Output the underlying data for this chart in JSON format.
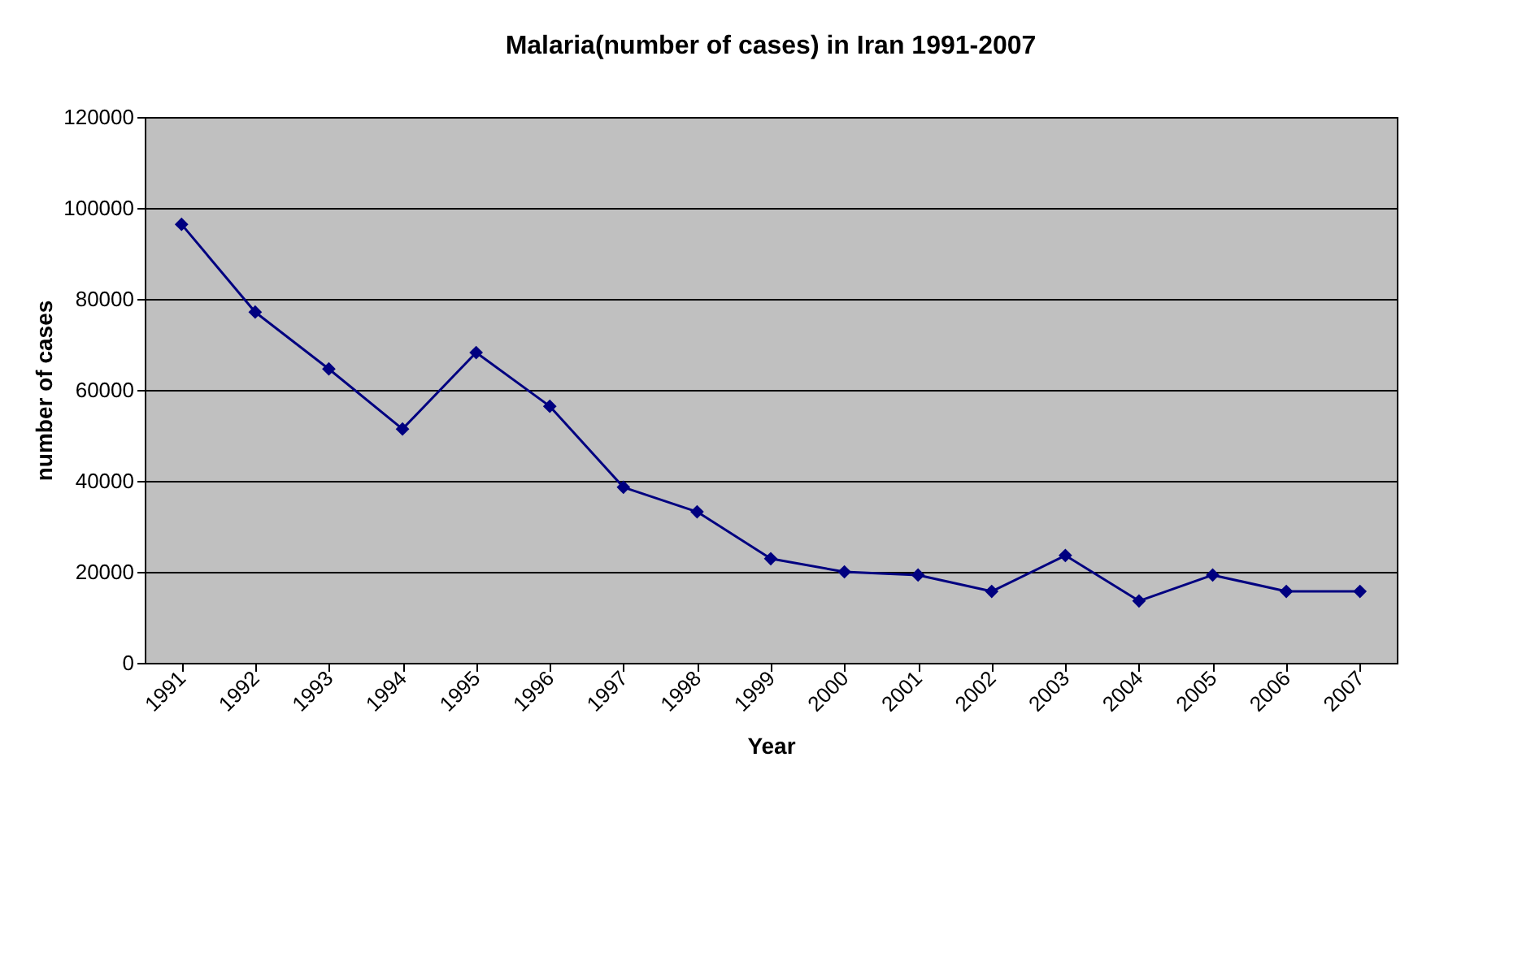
{
  "chart_data": {
    "type": "line",
    "title": "Malaria(number of cases) in Iran 1991-2007",
    "xlabel": "Year",
    "ylabel": "number of cases",
    "categories": [
      "1991",
      "1992",
      "1993",
      "1994",
      "1995",
      "1996",
      "1997",
      "1998",
      "1999",
      "2000",
      "2001",
      "2002",
      "2003",
      "2004",
      "2005",
      "2006",
      "2007"
    ],
    "series": [
      {
        "color": "#000080",
        "values": [
          96400,
          77100,
          64600,
          51400,
          68200,
          56400,
          38600,
          33200,
          22900,
          20000,
          19300,
          15700,
          23600,
          13600,
          19300,
          15700,
          15700
        ]
      }
    ],
    "ylim": [
      0,
      120000
    ],
    "yticks": [
      0,
      20000,
      40000,
      60000,
      80000,
      100000,
      120000
    ],
    "grid": "y",
    "legend": false,
    "marker": "diamond",
    "line_style": "solid"
  }
}
